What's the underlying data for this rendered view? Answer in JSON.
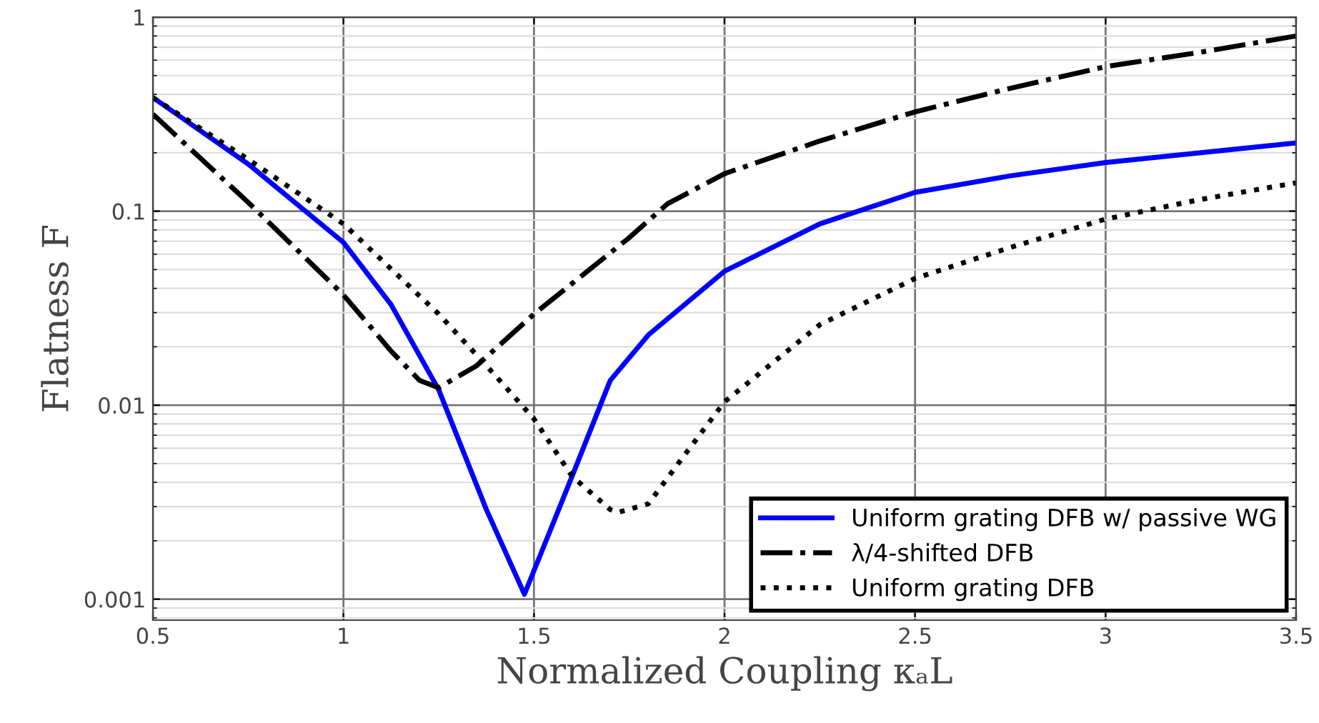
{
  "chart_data": {
    "type": "line",
    "xlabel": "Normalized Coupling κₐL",
    "ylabel": "Flatness F",
    "log": "y",
    "grid": true,
    "legend": "bottom right",
    "marker": "none",
    "xlim": [
      0.5,
      3.5
    ],
    "xticks": [
      0.5,
      1,
      1.5,
      2,
      2.5,
      3,
      3.5
    ],
    "ylim": [
      0.00078,
      1
    ],
    "yticks": [
      0.001,
      0.01,
      0.1,
      1
    ],
    "series": [
      {
        "name": "Uniform grating DFB w/ passive WG",
        "color": "#0000ff",
        "line_style": "solid",
        "x": [
          0.5,
          0.75,
          1,
          1.125,
          1.25,
          1.375,
          1.475,
          1.6,
          1.7,
          1.8,
          2,
          2.25,
          2.5,
          2.75,
          3,
          3.5
        ],
        "values": [
          0.385,
          0.175,
          0.069,
          0.033,
          0.012,
          0.0029,
          0.00106,
          0.0043,
          0.0134,
          0.023,
          0.049,
          0.086,
          0.125,
          0.152,
          0.178,
          0.225
        ]
      },
      {
        "name": "λ/4-shifted DFB",
        "color": "#000000",
        "line_style": "dashdot",
        "x": [
          0.5,
          0.75,
          1,
          1.125,
          1.2,
          1.25,
          1.35,
          1.5,
          1.75,
          1.85,
          2,
          2.25,
          2.5,
          2.75,
          3,
          3.25,
          3.5
        ],
        "values": [
          0.316,
          0.111,
          0.037,
          0.019,
          0.0134,
          0.0123,
          0.016,
          0.0295,
          0.073,
          0.109,
          0.156,
          0.23,
          0.325,
          0.43,
          0.556,
          0.66,
          0.8
        ]
      },
      {
        "name": "Uniform grating DFB",
        "color": "#000000",
        "line_style": "dotted",
        "x": [
          0.5,
          0.75,
          1,
          1.25,
          1.375,
          1.5,
          1.6,
          1.7,
          1.72,
          1.8,
          1.9,
          2,
          2.25,
          2.5,
          2.75,
          3,
          3.25,
          3.5
        ],
        "values": [
          0.385,
          0.185,
          0.086,
          0.0295,
          0.016,
          0.0085,
          0.0043,
          0.0029,
          0.0028,
          0.0031,
          0.0057,
          0.0104,
          0.026,
          0.045,
          0.065,
          0.091,
          0.115,
          0.14
        ]
      }
    ]
  }
}
